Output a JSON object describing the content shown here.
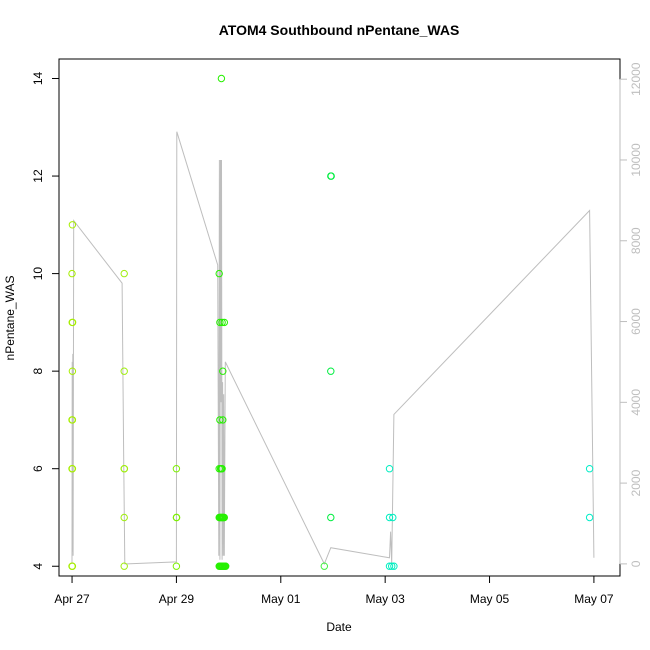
{
  "chart_data": {
    "type": "scatter",
    "title": "ATOM4 Southbound nPentane_WAS",
    "xlabel": "Date",
    "ylabel": "nPentane_WAS",
    "ylim": [
      3.8,
      14.4
    ],
    "y2lim": [
      -300,
      12500
    ],
    "xlim": [
      "2018-04-26 18:00",
      "2018-05-07 12:00"
    ],
    "x_ticks": [
      {
        "label": "Apr 27",
        "date": "2018-04-27 00:00"
      },
      {
        "label": "Apr 29",
        "date": "2018-04-29 00:00"
      },
      {
        "label": "May 01",
        "date": "2018-05-01 00:00"
      },
      {
        "label": "May 03",
        "date": "2018-05-03 00:00"
      },
      {
        "label": "May 05",
        "date": "2018-05-05 00:00"
      },
      {
        "label": "May 07",
        "date": "2018-05-07 00:00"
      }
    ],
    "y_ticks": [
      4,
      6,
      8,
      10,
      12,
      14
    ],
    "y2_ticks": [
      0,
      2000,
      4000,
      6000,
      8000,
      10000,
      12000
    ],
    "grid": false,
    "series": [
      {
        "kind": "points",
        "points": [
          {
            "x": "2018-04-27 00:00",
            "y": 4,
            "color": "#a6ee00"
          },
          {
            "x": "2018-04-27 00:10",
            "y": 4,
            "color": "#a6ee00"
          },
          {
            "x": "2018-04-27 00:00",
            "y": 6,
            "color": "#a6ee00"
          },
          {
            "x": "2018-04-27 00:10",
            "y": 6,
            "color": "#a6ee00"
          },
          {
            "x": "2018-04-27 00:00",
            "y": 7,
            "color": "#a6ee00"
          },
          {
            "x": "2018-04-27 00:10",
            "y": 7,
            "color": "#a6ee00"
          },
          {
            "x": "2018-04-27 00:10",
            "y": 8,
            "color": "#a6ee00"
          },
          {
            "x": "2018-04-27 00:05",
            "y": 9,
            "color": "#a6ee00"
          },
          {
            "x": "2018-04-27 00:15",
            "y": 9,
            "color": "#a6ee00"
          },
          {
            "x": "2018-04-27 00:00",
            "y": 10,
            "color": "#a6ee00"
          },
          {
            "x": "2018-04-27 00:10",
            "y": 11,
            "color": "#a6ee00"
          },
          {
            "x": "2018-04-28 00:00",
            "y": 4,
            "color": "#a0ee10"
          },
          {
            "x": "2018-04-28 00:00",
            "y": 5,
            "color": "#a0ee10"
          },
          {
            "x": "2018-04-28 00:00",
            "y": 6,
            "color": "#a0ee10"
          },
          {
            "x": "2018-04-28 00:05",
            "y": 6,
            "color": "#a0ee10"
          },
          {
            "x": "2018-04-28 00:00",
            "y": 8,
            "color": "#a0ee10"
          },
          {
            "x": "2018-04-28 00:00",
            "y": 10,
            "color": "#a0ee10"
          },
          {
            "x": "2018-04-29 00:00",
            "y": 4,
            "color": "#7cf000"
          },
          {
            "x": "2018-04-29 00:00",
            "y": 5,
            "color": "#7cf000"
          },
          {
            "x": "2018-04-29 00:05",
            "y": 5,
            "color": "#7cf000"
          },
          {
            "x": "2018-04-29 00:00",
            "y": 6,
            "color": "#7cf000"
          },
          {
            "x": "2018-04-29 19:40",
            "y": 4,
            "color": "#26f000"
          },
          {
            "x": "2018-04-29 20:00",
            "y": 4,
            "color": "#26f000"
          },
          {
            "x": "2018-04-29 20:20",
            "y": 4,
            "color": "#26f000"
          },
          {
            "x": "2018-04-29 20:40",
            "y": 4,
            "color": "#26f000"
          },
          {
            "x": "2018-04-29 21:00",
            "y": 4,
            "color": "#26f000"
          },
          {
            "x": "2018-04-29 21:20",
            "y": 4,
            "color": "#26f000"
          },
          {
            "x": "2018-04-29 21:40",
            "y": 4,
            "color": "#26f000"
          },
          {
            "x": "2018-04-29 22:00",
            "y": 4,
            "color": "#26f000"
          },
          {
            "x": "2018-04-29 22:20",
            "y": 4,
            "color": "#26f000"
          },
          {
            "x": "2018-04-29 22:40",
            "y": 4,
            "color": "#26f000"
          },
          {
            "x": "2018-04-29 19:40",
            "y": 5,
            "color": "#26f000"
          },
          {
            "x": "2018-04-29 20:00",
            "y": 5,
            "color": "#26f000"
          },
          {
            "x": "2018-04-29 20:20",
            "y": 5,
            "color": "#26f000"
          },
          {
            "x": "2018-04-29 20:40",
            "y": 5,
            "color": "#26f000"
          },
          {
            "x": "2018-04-29 21:00",
            "y": 5,
            "color": "#26f000"
          },
          {
            "x": "2018-04-29 21:20",
            "y": 5,
            "color": "#26f000"
          },
          {
            "x": "2018-04-29 21:40",
            "y": 5,
            "color": "#26f000"
          },
          {
            "x": "2018-04-29 22:00",
            "y": 5,
            "color": "#26f000"
          },
          {
            "x": "2018-04-29 19:40",
            "y": 6,
            "color": "#26f000"
          },
          {
            "x": "2018-04-29 20:20",
            "y": 6,
            "color": "#26f000"
          },
          {
            "x": "2018-04-29 20:40",
            "y": 6,
            "color": "#26f000"
          },
          {
            "x": "2018-04-29 21:00",
            "y": 6,
            "color": "#26f000"
          },
          {
            "x": "2018-04-29 20:00",
            "y": 7,
            "color": "#26f000"
          },
          {
            "x": "2018-04-29 21:20",
            "y": 7,
            "color": "#26f000"
          },
          {
            "x": "2018-04-29 21:20",
            "y": 8,
            "color": "#26f000"
          },
          {
            "x": "2018-04-29 20:00",
            "y": 9,
            "color": "#26f000"
          },
          {
            "x": "2018-04-29 21:00",
            "y": 9,
            "color": "#26f000"
          },
          {
            "x": "2018-04-29 22:00",
            "y": 9,
            "color": "#26f000"
          },
          {
            "x": "2018-04-29 19:40",
            "y": 10,
            "color": "#26f000"
          },
          {
            "x": "2018-04-29 20:40",
            "y": 14,
            "color": "#26f000"
          },
          {
            "x": "2018-05-01 20:00",
            "y": 4,
            "color": "#40f040"
          },
          {
            "x": "2018-05-01 23:00",
            "y": 5,
            "color": "#00ee40"
          },
          {
            "x": "2018-05-01 23:00",
            "y": 8,
            "color": "#00ee40"
          },
          {
            "x": "2018-05-01 23:00",
            "y": 12,
            "color": "#00ee40"
          },
          {
            "x": "2018-05-01 23:10",
            "y": 12,
            "color": "#00ee40"
          },
          {
            "x": "2018-05-03 02:00",
            "y": 4,
            "color": "#00eec0"
          },
          {
            "x": "2018-05-03 03:00",
            "y": 4,
            "color": "#00eec0"
          },
          {
            "x": "2018-05-03 04:00",
            "y": 4,
            "color": "#00eec0"
          },
          {
            "x": "2018-05-03 02:00",
            "y": 5,
            "color": "#00eec0"
          },
          {
            "x": "2018-05-03 03:30",
            "y": 5,
            "color": "#00eec0"
          },
          {
            "x": "2018-05-03 02:00",
            "y": 6,
            "color": "#00eec0"
          },
          {
            "x": "2018-05-06 22:00",
            "y": 5,
            "color": "#00eec8"
          },
          {
            "x": "2018-05-06 22:00",
            "y": 6,
            "color": "#00eec8"
          }
        ]
      },
      {
        "kind": "line",
        "axis": "right",
        "color": "#bebebe",
        "points": [
          {
            "x": "2018-04-27 00:00",
            "y": 0
          },
          {
            "x": "2018-04-27 00:05",
            "y": 5000
          },
          {
            "x": "2018-04-27 00:10",
            "y": 300
          },
          {
            "x": "2018-04-27 00:20",
            "y": 5200
          },
          {
            "x": "2018-04-27 00:30",
            "y": 200
          },
          {
            "x": "2018-04-27 00:45",
            "y": 8500
          },
          {
            "x": "2018-04-27 23:00",
            "y": 6950
          },
          {
            "x": "2018-04-27 23:45",
            "y": 2600
          },
          {
            "x": "2018-04-28 00:15",
            "y": 0
          },
          {
            "x": "2018-04-29 00:00",
            "y": 50
          },
          {
            "x": "2018-04-29 00:10",
            "y": 10700
          },
          {
            "x": "2018-04-29 19:00",
            "y": 7400
          },
          {
            "x": "2018-04-29 19:30",
            "y": 200
          },
          {
            "x": "2018-04-29 19:45",
            "y": 10000
          },
          {
            "x": "2018-04-29 20:00",
            "y": 100
          },
          {
            "x": "2018-04-29 20:15",
            "y": 10000
          },
          {
            "x": "2018-04-29 20:30",
            "y": 4000
          },
          {
            "x": "2018-04-29 20:45",
            "y": 10000
          },
          {
            "x": "2018-04-29 21:00",
            "y": 100
          },
          {
            "x": "2018-04-29 21:15",
            "y": 4500
          },
          {
            "x": "2018-04-29 21:30",
            "y": 200
          },
          {
            "x": "2018-04-29 21:45",
            "y": 4200
          },
          {
            "x": "2018-04-29 22:00",
            "y": 200
          },
          {
            "x": "2018-04-29 22:30",
            "y": 5000
          },
          {
            "x": "2018-05-01 20:00",
            "y": 0
          },
          {
            "x": "2018-05-01 23:00",
            "y": 400
          },
          {
            "x": "2018-05-03 02:00",
            "y": 150
          },
          {
            "x": "2018-05-03 02:30",
            "y": 800
          },
          {
            "x": "2018-05-03 03:00",
            "y": 0
          },
          {
            "x": "2018-05-03 04:00",
            "y": 3700
          },
          {
            "x": "2018-05-06 22:00",
            "y": 8750
          },
          {
            "x": "2018-05-07 00:00",
            "y": 150
          }
        ]
      }
    ]
  }
}
